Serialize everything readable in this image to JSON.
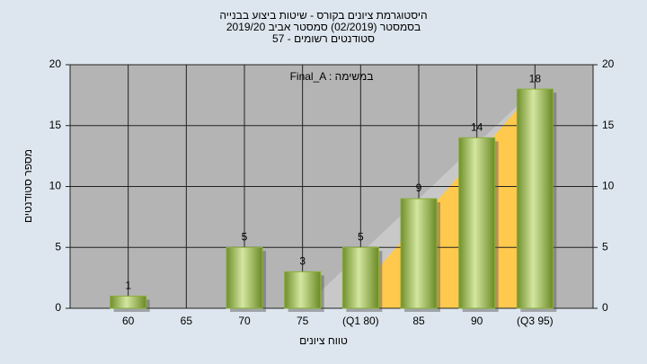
{
  "chart_data": {
    "type": "bar",
    "title": "היסטוגרמת ציונים בקורס - שיטות ביצוע בבנייה",
    "subtitle": [
      "בסמסטר  (02/2019)  סמסטר אביב 2019/20",
      "סטודנטים רשומים - 57"
    ],
    "annotation": "Final_A : במשימה",
    "x_label": "טווח ציונים",
    "y_label": "מספר סטודנטים",
    "categories": [
      "60",
      "65",
      "70",
      "75",
      "(Q1 80)",
      "85",
      "90",
      "(Q3 95)"
    ],
    "values": [
      1,
      0,
      5,
      3,
      5,
      9,
      14,
      18
    ],
    "color": "#8aae3c",
    "ylim": [
      0,
      20
    ],
    "yticks": [
      0,
      5,
      10,
      15,
      20
    ],
    "grid": true
  }
}
